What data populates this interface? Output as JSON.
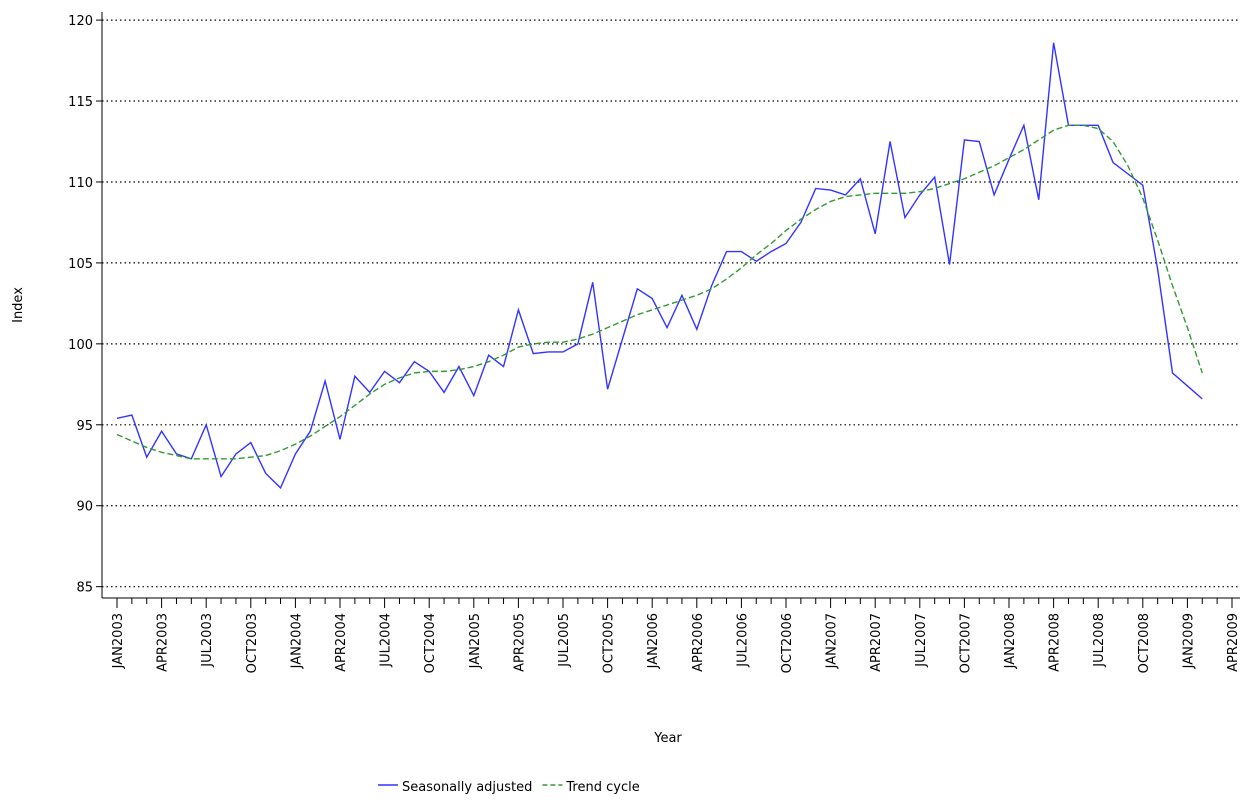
{
  "chart_data": {
    "type": "line",
    "xlabel": "Year",
    "ylabel": "Index",
    "categories": [
      "JAN2003",
      null,
      null,
      "APR2003",
      null,
      null,
      "JUL2003",
      null,
      null,
      "OCT2003",
      null,
      null,
      "JAN2004",
      null,
      null,
      "APR2004",
      null,
      null,
      "JUL2004",
      null,
      null,
      "OCT2004",
      null,
      null,
      "JAN2005",
      null,
      null,
      "APR2005",
      null,
      null,
      "JUL2005",
      null,
      null,
      "OCT2005",
      null,
      null,
      "JAN2006",
      null,
      null,
      "APR2006",
      null,
      null,
      "JUL2006",
      null,
      null,
      "OCT2006",
      null,
      null,
      "JAN2007",
      null,
      null,
      "APR2007",
      null,
      null,
      "JUL2007",
      null,
      null,
      "OCT2007",
      null,
      null,
      "JAN2008",
      null,
      null,
      "APR2008",
      null,
      null,
      "JUL2008",
      null,
      null,
      "OCT2008",
      null,
      null,
      "JAN2009",
      null,
      null,
      "APR2009"
    ],
    "series": [
      {
        "name": "Seasonally adjusted",
        "color": "#3333ff",
        "style": "solid",
        "values": [
          95.4,
          95.6,
          93.0,
          94.6,
          93.2,
          92.9,
          95.0,
          91.8,
          93.2,
          93.9,
          92.0,
          91.1,
          93.2,
          94.6,
          97.7,
          94.1,
          98.0,
          97.0,
          98.3,
          97.6,
          98.9,
          98.3,
          97.0,
          98.6,
          96.8,
          99.3,
          98.6,
          102.1,
          99.4,
          99.5,
          99.5,
          100.0,
          103.8,
          97.2,
          100.3,
          103.4,
          102.8,
          101.0,
          103.0,
          100.9,
          103.6,
          105.7,
          105.7,
          105.1,
          105.7,
          106.2,
          107.5,
          109.6,
          109.5,
          109.2,
          110.2,
          106.8,
          112.5,
          107.8,
          109.2,
          110.3,
          104.9,
          112.6,
          112.5,
          109.2,
          111.4,
          113.5,
          108.9,
          118.6,
          113.5,
          113.5,
          113.5,
          111.2,
          110.5,
          109.8,
          104.6,
          98.2,
          97.4,
          96.6,
          null,
          null
        ]
      },
      {
        "name": "Trend cycle",
        "color": "#339933",
        "style": "dashed",
        "values": [
          94.4,
          94.0,
          93.6,
          93.3,
          93.1,
          92.9,
          92.9,
          92.9,
          92.9,
          93.0,
          93.1,
          93.4,
          93.8,
          94.3,
          94.9,
          95.5,
          96.2,
          96.9,
          97.5,
          97.9,
          98.2,
          98.3,
          98.3,
          98.4,
          98.6,
          98.9,
          99.3,
          99.8,
          100.0,
          100.1,
          100.1,
          100.3,
          100.6,
          101.0,
          101.4,
          101.8,
          102.1,
          102.4,
          102.7,
          103.0,
          103.4,
          104.0,
          104.7,
          105.5,
          106.2,
          107.0,
          107.7,
          108.3,
          108.8,
          109.1,
          109.2,
          109.3,
          109.3,
          109.3,
          109.4,
          109.6,
          109.9,
          110.2,
          110.6,
          111.0,
          111.5,
          112.0,
          112.6,
          113.2,
          113.5,
          113.5,
          113.3,
          112.5,
          111.0,
          109.0,
          106.4,
          103.6,
          101.0,
          98.2,
          null,
          null
        ]
      }
    ],
    "ylim": [
      84.3,
      120.5
    ],
    "yticks": [
      85,
      90,
      95,
      100,
      105,
      110,
      115,
      120
    ],
    "grid": true,
    "legend": "bottom"
  }
}
